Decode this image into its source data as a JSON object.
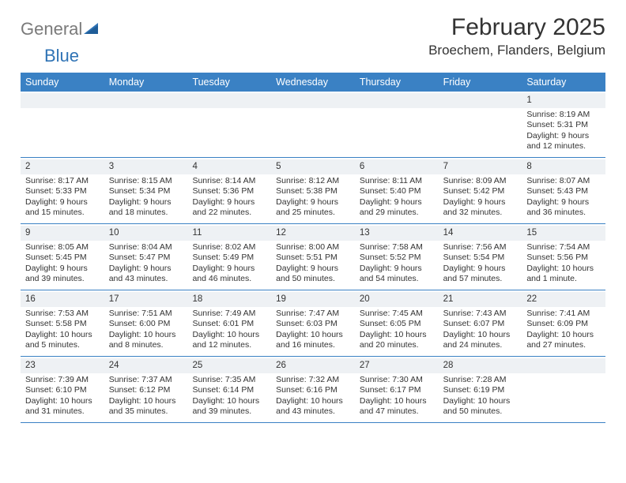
{
  "logo": {
    "word1": "General",
    "word2": "Blue",
    "triangle_color": "#2f73b5",
    "text_gray": "#7a7a7a"
  },
  "title": "February 2025",
  "location": "Broechem, Flanders, Belgium",
  "accent_color": "#3a81c4",
  "band_color": "#eef1f4",
  "text_color": "#333333",
  "day_headers": [
    "Sunday",
    "Monday",
    "Tuesday",
    "Wednesday",
    "Thursday",
    "Friday",
    "Saturday"
  ],
  "weeks": [
    [
      {
        "blank": true
      },
      {
        "blank": true
      },
      {
        "blank": true
      },
      {
        "blank": true
      },
      {
        "blank": true
      },
      {
        "blank": true
      },
      {
        "n": "1",
        "sunrise": "Sunrise: 8:19 AM",
        "sunset": "Sunset: 5:31 PM",
        "day": "Daylight: 9 hours and 12 minutes."
      }
    ],
    [
      {
        "n": "2",
        "sunrise": "Sunrise: 8:17 AM",
        "sunset": "Sunset: 5:33 PM",
        "day": "Daylight: 9 hours and 15 minutes."
      },
      {
        "n": "3",
        "sunrise": "Sunrise: 8:15 AM",
        "sunset": "Sunset: 5:34 PM",
        "day": "Daylight: 9 hours and 18 minutes."
      },
      {
        "n": "4",
        "sunrise": "Sunrise: 8:14 AM",
        "sunset": "Sunset: 5:36 PM",
        "day": "Daylight: 9 hours and 22 minutes."
      },
      {
        "n": "5",
        "sunrise": "Sunrise: 8:12 AM",
        "sunset": "Sunset: 5:38 PM",
        "day": "Daylight: 9 hours and 25 minutes."
      },
      {
        "n": "6",
        "sunrise": "Sunrise: 8:11 AM",
        "sunset": "Sunset: 5:40 PM",
        "day": "Daylight: 9 hours and 29 minutes."
      },
      {
        "n": "7",
        "sunrise": "Sunrise: 8:09 AM",
        "sunset": "Sunset: 5:42 PM",
        "day": "Daylight: 9 hours and 32 minutes."
      },
      {
        "n": "8",
        "sunrise": "Sunrise: 8:07 AM",
        "sunset": "Sunset: 5:43 PM",
        "day": "Daylight: 9 hours and 36 minutes."
      }
    ],
    [
      {
        "n": "9",
        "sunrise": "Sunrise: 8:05 AM",
        "sunset": "Sunset: 5:45 PM",
        "day": "Daylight: 9 hours and 39 minutes."
      },
      {
        "n": "10",
        "sunrise": "Sunrise: 8:04 AM",
        "sunset": "Sunset: 5:47 PM",
        "day": "Daylight: 9 hours and 43 minutes."
      },
      {
        "n": "11",
        "sunrise": "Sunrise: 8:02 AM",
        "sunset": "Sunset: 5:49 PM",
        "day": "Daylight: 9 hours and 46 minutes."
      },
      {
        "n": "12",
        "sunrise": "Sunrise: 8:00 AM",
        "sunset": "Sunset: 5:51 PM",
        "day": "Daylight: 9 hours and 50 minutes."
      },
      {
        "n": "13",
        "sunrise": "Sunrise: 7:58 AM",
        "sunset": "Sunset: 5:52 PM",
        "day": "Daylight: 9 hours and 54 minutes."
      },
      {
        "n": "14",
        "sunrise": "Sunrise: 7:56 AM",
        "sunset": "Sunset: 5:54 PM",
        "day": "Daylight: 9 hours and 57 minutes."
      },
      {
        "n": "15",
        "sunrise": "Sunrise: 7:54 AM",
        "sunset": "Sunset: 5:56 PM",
        "day": "Daylight: 10 hours and 1 minute."
      }
    ],
    [
      {
        "n": "16",
        "sunrise": "Sunrise: 7:53 AM",
        "sunset": "Sunset: 5:58 PM",
        "day": "Daylight: 10 hours and 5 minutes."
      },
      {
        "n": "17",
        "sunrise": "Sunrise: 7:51 AM",
        "sunset": "Sunset: 6:00 PM",
        "day": "Daylight: 10 hours and 8 minutes."
      },
      {
        "n": "18",
        "sunrise": "Sunrise: 7:49 AM",
        "sunset": "Sunset: 6:01 PM",
        "day": "Daylight: 10 hours and 12 minutes."
      },
      {
        "n": "19",
        "sunrise": "Sunrise: 7:47 AM",
        "sunset": "Sunset: 6:03 PM",
        "day": "Daylight: 10 hours and 16 minutes."
      },
      {
        "n": "20",
        "sunrise": "Sunrise: 7:45 AM",
        "sunset": "Sunset: 6:05 PM",
        "day": "Daylight: 10 hours and 20 minutes."
      },
      {
        "n": "21",
        "sunrise": "Sunrise: 7:43 AM",
        "sunset": "Sunset: 6:07 PM",
        "day": "Daylight: 10 hours and 24 minutes."
      },
      {
        "n": "22",
        "sunrise": "Sunrise: 7:41 AM",
        "sunset": "Sunset: 6:09 PM",
        "day": "Daylight: 10 hours and 27 minutes."
      }
    ],
    [
      {
        "n": "23",
        "sunrise": "Sunrise: 7:39 AM",
        "sunset": "Sunset: 6:10 PM",
        "day": "Daylight: 10 hours and 31 minutes."
      },
      {
        "n": "24",
        "sunrise": "Sunrise: 7:37 AM",
        "sunset": "Sunset: 6:12 PM",
        "day": "Daylight: 10 hours and 35 minutes."
      },
      {
        "n": "25",
        "sunrise": "Sunrise: 7:35 AM",
        "sunset": "Sunset: 6:14 PM",
        "day": "Daylight: 10 hours and 39 minutes."
      },
      {
        "n": "26",
        "sunrise": "Sunrise: 7:32 AM",
        "sunset": "Sunset: 6:16 PM",
        "day": "Daylight: 10 hours and 43 minutes."
      },
      {
        "n": "27",
        "sunrise": "Sunrise: 7:30 AM",
        "sunset": "Sunset: 6:17 PM",
        "day": "Daylight: 10 hours and 47 minutes."
      },
      {
        "n": "28",
        "sunrise": "Sunrise: 7:28 AM",
        "sunset": "Sunset: 6:19 PM",
        "day": "Daylight: 10 hours and 50 minutes."
      },
      {
        "blank": true
      }
    ]
  ]
}
